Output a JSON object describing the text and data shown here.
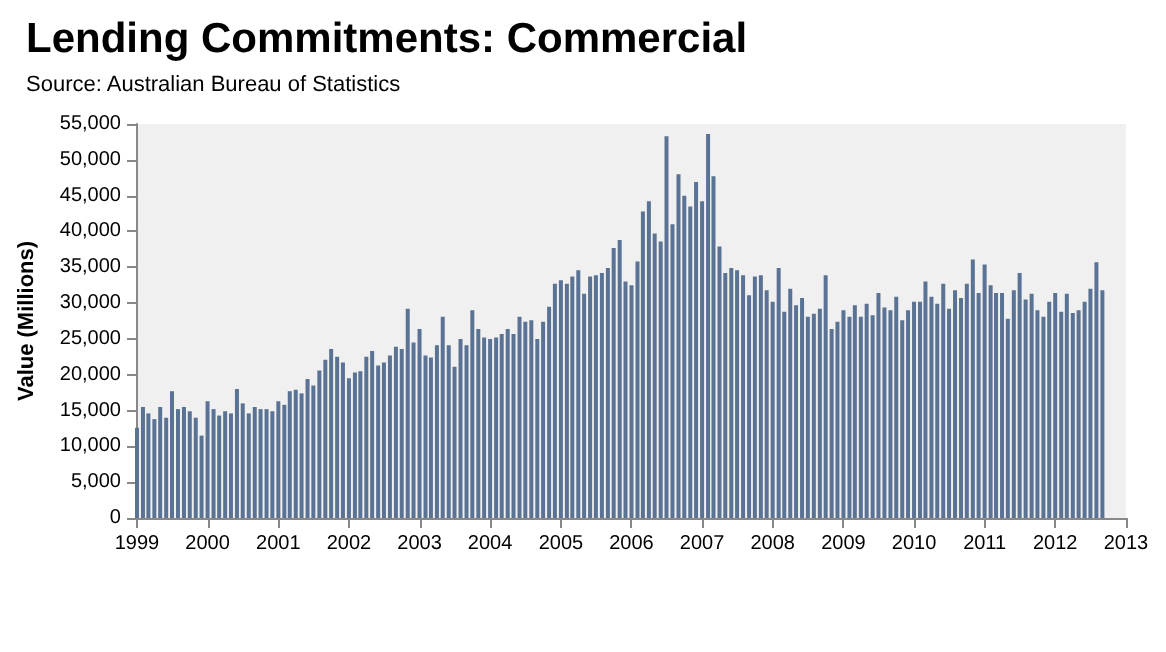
{
  "chart_data": {
    "type": "bar",
    "title": "Lending Commitments: Commercial",
    "subtitle": "Source: Australian Bureau of Statistics",
    "ylabel": "Value (Millions)",
    "x": [
      "1999-01",
      "1999-02",
      "1999-03",
      "1999-04",
      "1999-05",
      "1999-06",
      "1999-07",
      "1999-08",
      "1999-09",
      "1999-10",
      "1999-11",
      "1999-12",
      "2000-01",
      "2000-02",
      "2000-03",
      "2000-04",
      "2000-05",
      "2000-06",
      "2000-07",
      "2000-08",
      "2000-09",
      "2000-10",
      "2000-11",
      "2000-12",
      "2001-01",
      "2001-02",
      "2001-03",
      "2001-04",
      "2001-05",
      "2001-06",
      "2001-07",
      "2001-08",
      "2001-09",
      "2001-10",
      "2001-11",
      "2001-12",
      "2002-01",
      "2002-02",
      "2002-03",
      "2002-04",
      "2002-05",
      "2002-06",
      "2002-07",
      "2002-08",
      "2002-09",
      "2002-10",
      "2002-11",
      "2002-12",
      "2003-01",
      "2003-02",
      "2003-03",
      "2003-04",
      "2003-05",
      "2003-06",
      "2003-07",
      "2003-08",
      "2003-09",
      "2003-10",
      "2003-11",
      "2003-12",
      "2004-01",
      "2004-02",
      "2004-03",
      "2004-04",
      "2004-05",
      "2004-06",
      "2004-07",
      "2004-08",
      "2004-09",
      "2004-10",
      "2004-11",
      "2004-12",
      "2005-01",
      "2005-02",
      "2005-03",
      "2005-04",
      "2005-05",
      "2005-06",
      "2005-07",
      "2005-08",
      "2005-09",
      "2005-10",
      "2005-11",
      "2005-12",
      "2006-01",
      "2006-02",
      "2006-03",
      "2006-04",
      "2006-05",
      "2006-06",
      "2006-07",
      "2006-08",
      "2006-09",
      "2006-10",
      "2006-11",
      "2006-12",
      "2007-01",
      "2007-02",
      "2007-03",
      "2007-04",
      "2007-05",
      "2007-06",
      "2007-07",
      "2007-08",
      "2007-09",
      "2007-10",
      "2007-11",
      "2007-12",
      "2008-01",
      "2008-02",
      "2008-03",
      "2008-04",
      "2008-05",
      "2008-06",
      "2008-07",
      "2008-08",
      "2008-09",
      "2008-10",
      "2008-11",
      "2008-12",
      "2009-01",
      "2009-02",
      "2009-03",
      "2009-04",
      "2009-05",
      "2009-06",
      "2009-07",
      "2009-08",
      "2009-09",
      "2009-10",
      "2009-11",
      "2009-12",
      "2010-01",
      "2010-02",
      "2010-03",
      "2010-04",
      "2010-05",
      "2010-06",
      "2010-07",
      "2010-08",
      "2010-09",
      "2010-10",
      "2010-11",
      "2010-12",
      "2011-01",
      "2011-02",
      "2011-03",
      "2011-04",
      "2011-05",
      "2011-06",
      "2011-07",
      "2011-08",
      "2011-09",
      "2011-10",
      "2011-11",
      "2011-12",
      "2012-01",
      "2012-02",
      "2012-03",
      "2012-04",
      "2012-05",
      "2012-06",
      "2012-07",
      "2012-08",
      "2012-09"
    ],
    "values": [
      12600,
      15500,
      14600,
      13800,
      15500,
      14000,
      17700,
      15200,
      15500,
      14900,
      14000,
      11500,
      16300,
      15200,
      14300,
      14900,
      14600,
      18000,
      16000,
      14600,
      15500,
      15200,
      15200,
      14900,
      16300,
      15800,
      17700,
      17900,
      17400,
      19400,
      18500,
      20600,
      22100,
      23600,
      22500,
      21700,
      19500,
      20300,
      20500,
      22500,
      23300,
      21300,
      21700,
      22700,
      23900,
      23600,
      29200,
      24500,
      26400,
      22700,
      22400,
      24100,
      28100,
      24100,
      21100,
      25000,
      24100,
      29000,
      26400,
      25200,
      25000,
      25200,
      25700,
      26400,
      25700,
      28100,
      27400,
      27600,
      25000,
      27400,
      29500,
      32700,
      33200,
      32700,
      33700,
      34600,
      31300,
      33700,
      33900,
      34200,
      34900,
      37700,
      38800,
      33000,
      32500,
      35800,
      42800,
      44200,
      39700,
      38600,
      53300,
      41000,
      48000,
      45000,
      43500,
      46900,
      44200,
      53600,
      47700,
      37900,
      34200,
      34900,
      34600,
      33900,
      31100,
      33700,
      33900,
      31800,
      30200,
      34900,
      28800,
      32000,
      29700,
      30700,
      28100,
      28500,
      29200,
      33900,
      26400,
      27400,
      29000,
      28100,
      29700,
      28100,
      29900,
      28300,
      31400,
      29400,
      29000,
      30900,
      27600,
      29000,
      30200,
      30200,
      33000,
      30900,
      29900,
      32700,
      29200,
      31800,
      30700,
      32700,
      36100,
      31400,
      35400,
      32500,
      31400,
      31400,
      27800,
      31800,
      34200,
      30500,
      31300,
      29000,
      28100,
      30200,
      31400,
      28800,
      31300,
      28600,
      29000,
      30200,
      32000,
      35700,
      31800
    ],
    "color": "#5a7394",
    "xlim": [
      "1999-01",
      "2013-01"
    ],
    "xticks": [
      "1999",
      "2000",
      "2001",
      "2002",
      "2003",
      "2004",
      "2005",
      "2006",
      "2007",
      "2008",
      "2009",
      "2010",
      "2011",
      "2012",
      "2013"
    ],
    "ylim": [
      0,
      55000
    ],
    "yticks": [
      0,
      {
        "value": 5000,
        "label": "5,000"
      },
      {
        "value": 10000,
        "label": "10,000"
      },
      {
        "value": 15000,
        "label": "15,000"
      },
      {
        "value": 20000,
        "label": "20,000"
      },
      {
        "value": 25000,
        "label": "25,000"
      },
      {
        "value": 30000,
        "label": "30,000"
      },
      {
        "value": 35000,
        "label": "35,000"
      },
      {
        "value": 40000,
        "label": "40,000"
      },
      {
        "value": 45000,
        "label": "45,000"
      },
      {
        "value": 50000,
        "label": "50,000"
      },
      {
        "value": 55000,
        "label": "55,000"
      }
    ],
    "grid": false
  }
}
